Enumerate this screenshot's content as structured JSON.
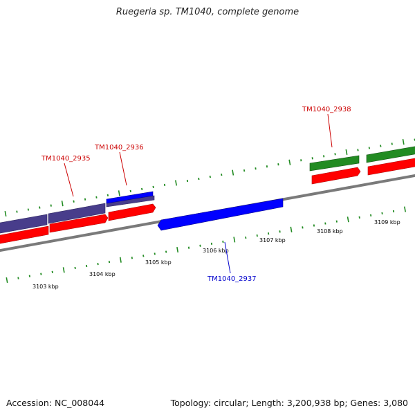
{
  "title": "Ruegeria sp. TM1040, complete genome",
  "footer": {
    "accession": "Accession: NC_008044",
    "summary": "Topology: circular; Length: 3,200,938 bp; Genes: 3,080"
  },
  "colors": {
    "forward_cds": "#0000ff",
    "reverse_cds": "#ff0000",
    "rna_or_other": "#228b22",
    "overlap": "#483d8b",
    "backbone": "#808080",
    "minor_tick": "#228b22"
  },
  "tick_labels": [
    {
      "kbp": 3103,
      "text": "3103 kbp"
    },
    {
      "kbp": 3104,
      "text": "3104 kbp"
    },
    {
      "kbp": 3105,
      "text": "3105 kbp"
    },
    {
      "kbp": 3106,
      "text": "3106 kbp"
    },
    {
      "kbp": 3107,
      "text": "3107 kbp"
    },
    {
      "kbp": 3108,
      "text": "3108 kbp"
    },
    {
      "kbp": 3109,
      "text": "3109 kbp"
    }
  ],
  "gene_labels": [
    {
      "name": "TM1040_2935",
      "color": "#cc0000"
    },
    {
      "name": "TM1040_2936",
      "color": "#cc0000"
    },
    {
      "name": "TM1040_2937",
      "color": "#0000cc"
    },
    {
      "name": "TM1040_2938",
      "color": "#cc0000"
    }
  ]
}
